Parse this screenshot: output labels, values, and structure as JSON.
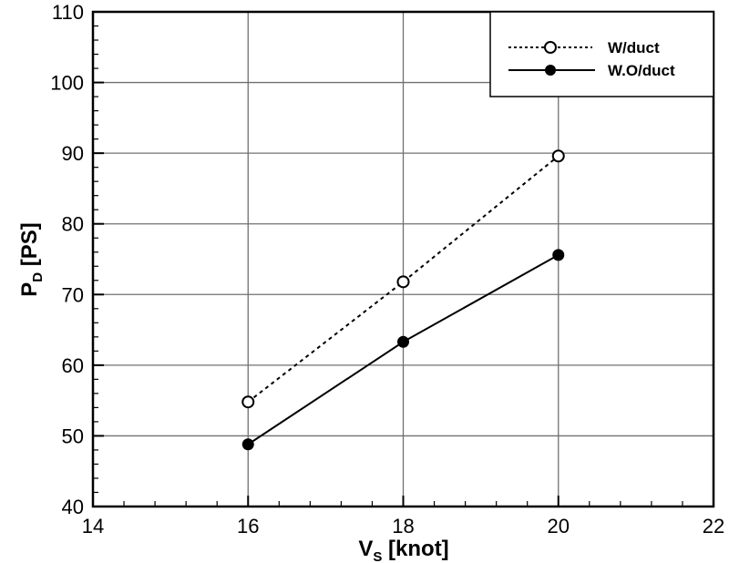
{
  "chart_data": {
    "type": "line",
    "title": "",
    "xlabel": "V_S [knot]",
    "ylabel": "P_D [PS]",
    "xlabel_main": "V",
    "xlabel_sub": "S",
    "xlabel_unit": " [knot]",
    "ylabel_main": "P",
    "ylabel_sub": "D",
    "ylabel_unit": " [PS]",
    "xlim": [
      14,
      22
    ],
    "ylim": [
      40,
      110
    ],
    "xticks": [
      14,
      16,
      18,
      20,
      22
    ],
    "yticks": [
      40,
      50,
      60,
      70,
      80,
      90,
      100,
      110
    ],
    "grid": true,
    "legend_position": "upper right",
    "x": [
      16,
      18,
      20
    ],
    "series": [
      {
        "name": "W/duct",
        "values": [
          54.8,
          71.8,
          89.6
        ],
        "line_style": "dotted",
        "marker": "open-circle",
        "color": "#000000"
      },
      {
        "name": "W.O/duct",
        "values": [
          48.8,
          63.3,
          75.6
        ],
        "line_style": "solid",
        "marker": "filled-circle",
        "color": "#000000"
      }
    ]
  }
}
